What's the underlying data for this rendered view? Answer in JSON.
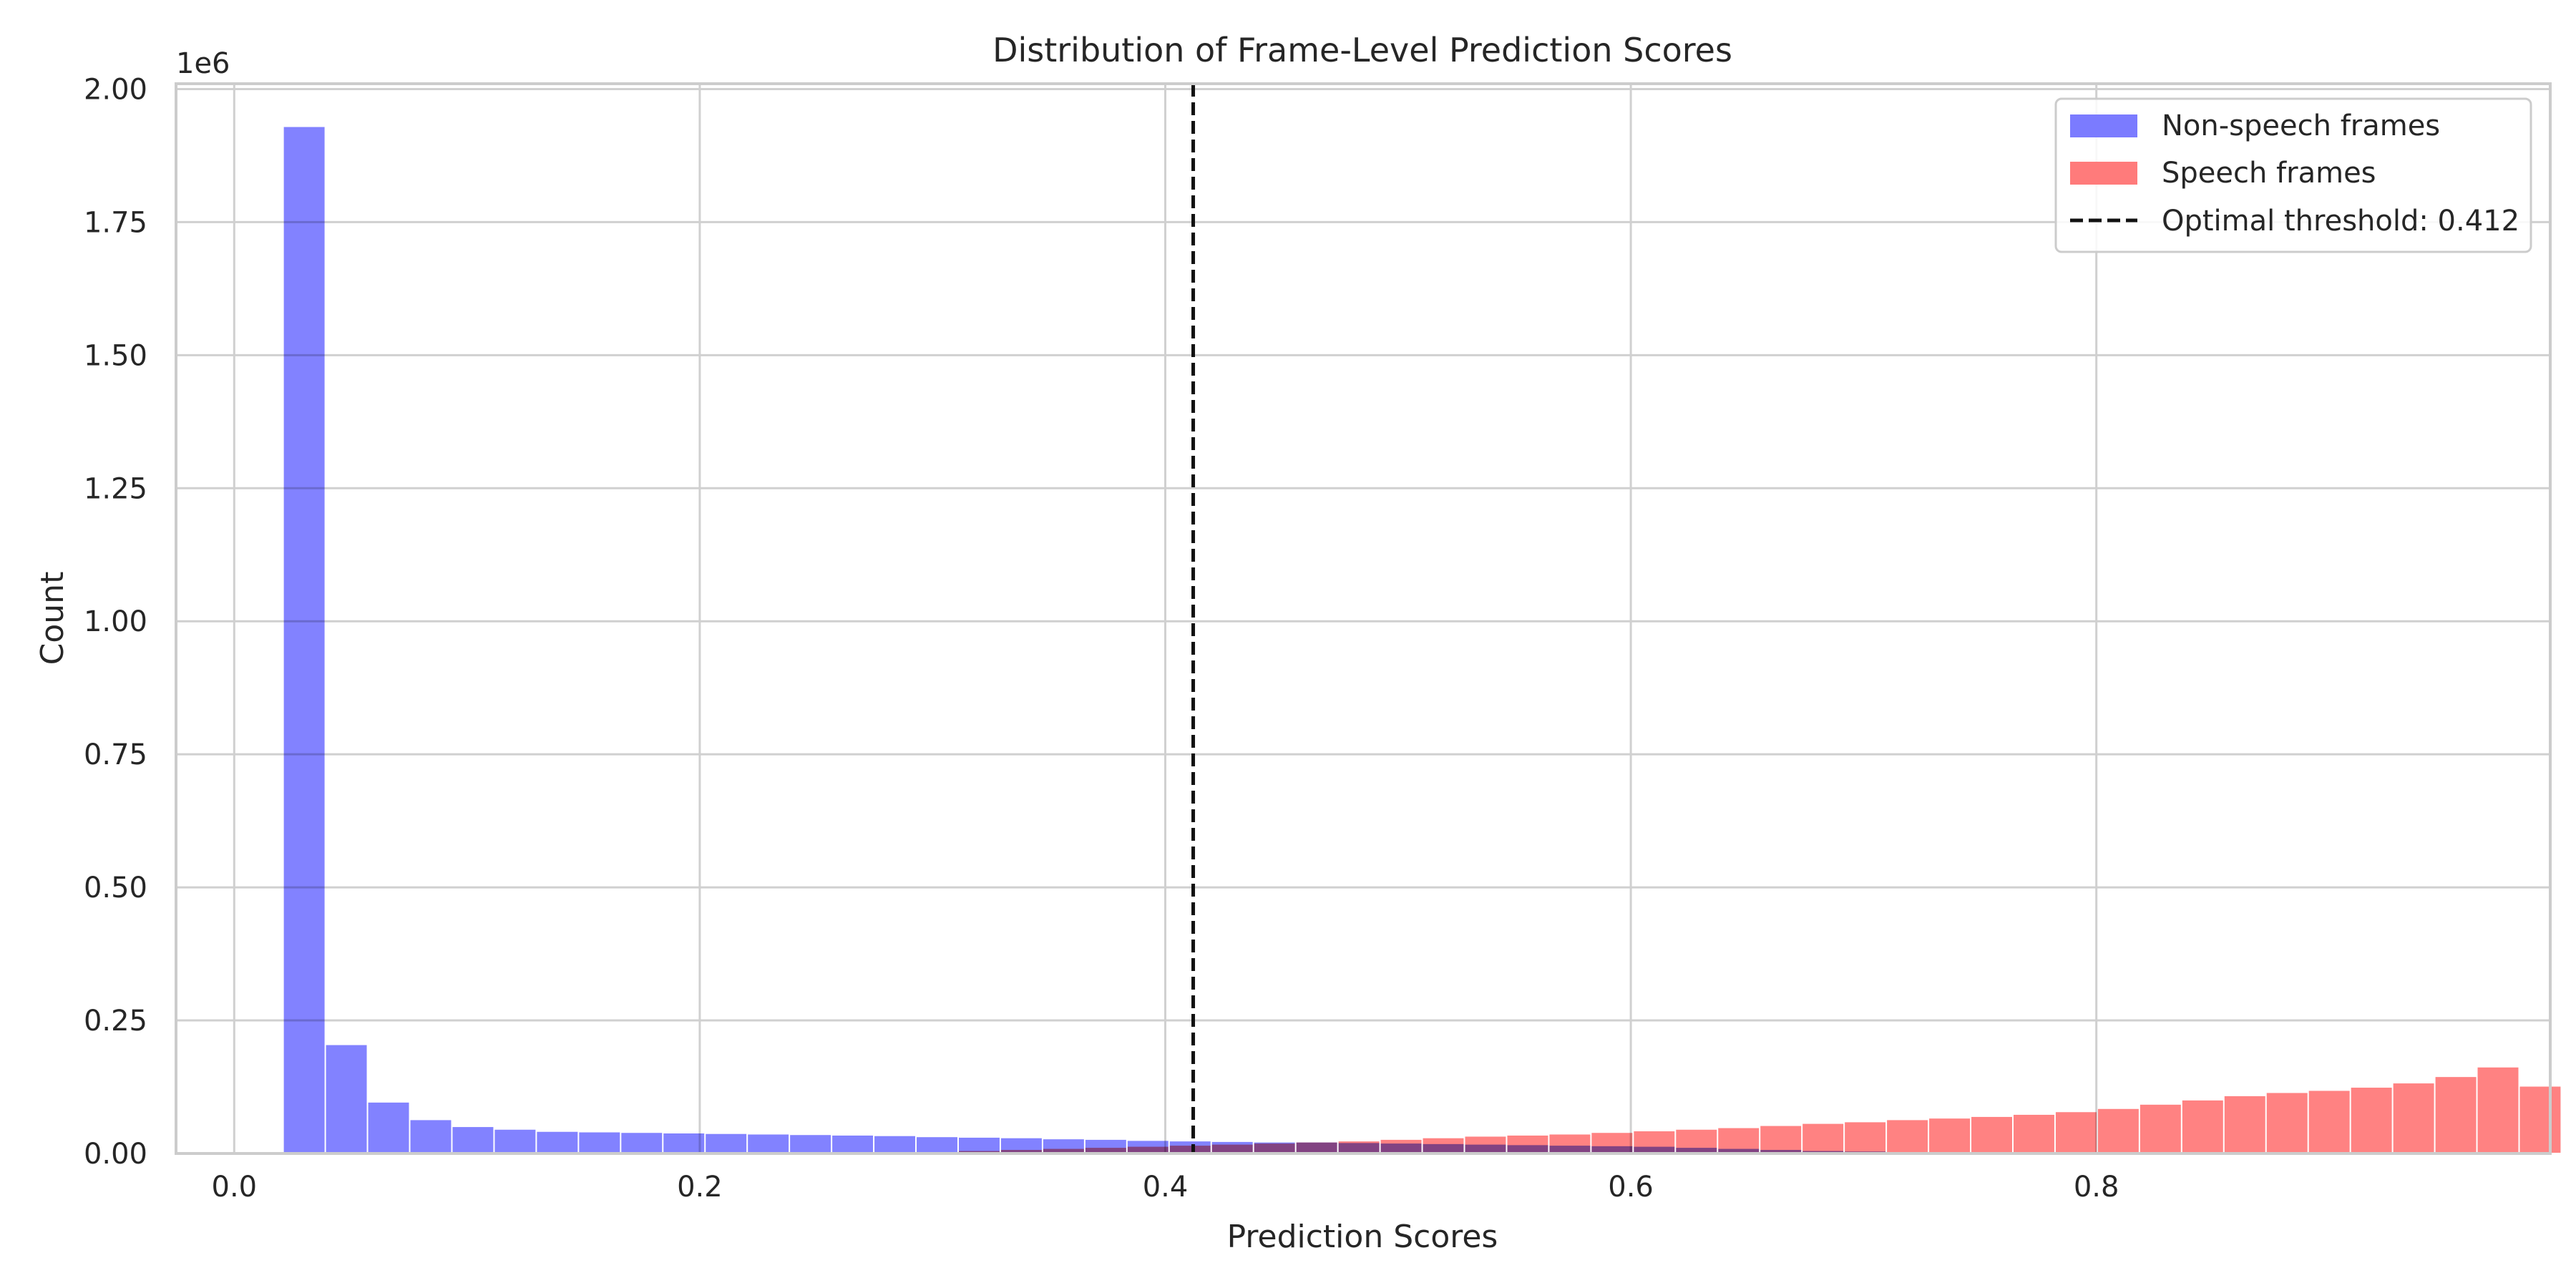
{
  "chart_data": {
    "type": "bar",
    "title": "Distribution of Frame-Level Prediction Scores",
    "xlabel": "Prediction Scores",
    "ylabel": "Count",
    "y_offset_label": "1e6",
    "xlim": [
      -0.025,
      0.995
    ],
    "ylim": [
      0,
      2.01
    ],
    "y_unit_multiplier": 1000000,
    "grid": true,
    "legend_position": "top-right",
    "x_ticks": [
      {
        "value": 0.0,
        "label": "0.0"
      },
      {
        "value": 0.2,
        "label": "0.2"
      },
      {
        "value": 0.4,
        "label": "0.4"
      },
      {
        "value": 0.6,
        "label": "0.6"
      },
      {
        "value": 0.8,
        "label": "0.8"
      }
    ],
    "y_ticks": [
      {
        "value": 0.0,
        "label": "0.00"
      },
      {
        "value": 0.25,
        "label": "0.25"
      },
      {
        "value": 0.5,
        "label": "0.50"
      },
      {
        "value": 0.75,
        "label": "0.75"
      },
      {
        "value": 1.0,
        "label": "1.00"
      },
      {
        "value": 1.25,
        "label": "1.25"
      },
      {
        "value": 1.5,
        "label": "1.50"
      },
      {
        "value": 1.75,
        "label": "1.75"
      },
      {
        "value": 2.0,
        "label": "2.00"
      }
    ],
    "bin_start": 0.021,
    "bin_width": 0.018125,
    "series": [
      {
        "name": "Non-speech frames",
        "color": "#7b7bff",
        "values": [
          1.93,
          0.205,
          0.097,
          0.064,
          0.051,
          0.046,
          0.042,
          0.041,
          0.04,
          0.039,
          0.038,
          0.037,
          0.036,
          0.035,
          0.034,
          0.032,
          0.031,
          0.03,
          0.028,
          0.027,
          0.025,
          0.024,
          0.023,
          0.022,
          0.022,
          0.021,
          0.02,
          0.019,
          0.018,
          0.017,
          0.016,
          0.015,
          0.014,
          0.012,
          0.01,
          0.008,
          0.006,
          0.005,
          0.004,
          0.003,
          0.002,
          0.002,
          0.001,
          0.001,
          0.001,
          0.001,
          0.001,
          0.001,
          0.001,
          0.001,
          0.001
        ]
      },
      {
        "name": "Speech frames",
        "color": "#ff7b7b",
        "values": [
          0.0,
          0.0,
          0.0,
          0.0,
          0.0,
          0.0,
          0.0,
          0.0,
          0.0,
          0.0,
          0.0,
          0.0,
          0.001,
          0.002,
          0.003,
          0.004,
          0.006,
          0.008,
          0.01,
          0.012,
          0.014,
          0.016,
          0.018,
          0.02,
          0.022,
          0.024,
          0.027,
          0.03,
          0.033,
          0.035,
          0.037,
          0.04,
          0.043,
          0.046,
          0.049,
          0.053,
          0.057,
          0.06,
          0.064,
          0.067,
          0.07,
          0.074,
          0.079,
          0.085,
          0.093,
          0.101,
          0.109,
          0.115,
          0.119,
          0.125,
          0.133,
          0.145,
          0.163,
          0.127
        ]
      }
    ],
    "threshold": {
      "value": 0.412,
      "label": "Optimal threshold: 0.412",
      "color": "#111111",
      "style": "dashed"
    }
  }
}
